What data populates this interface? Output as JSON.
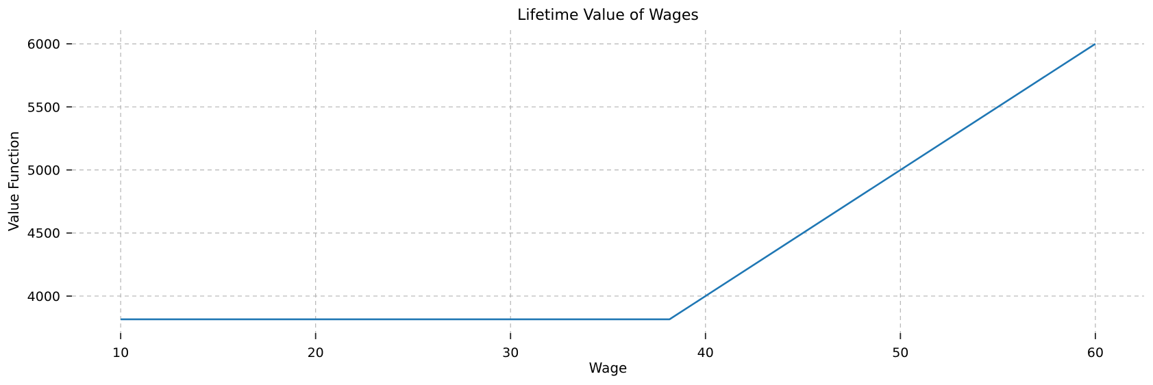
{
  "chart_data": {
    "type": "line",
    "title": "Lifetime Value of Wages",
    "xlabel": "Wage",
    "ylabel": "Value Function",
    "xlim": [
      7.5,
      62.5
    ],
    "ylim": [
      3707,
      6109
    ],
    "xticks": [
      10,
      20,
      30,
      40,
      50,
      60
    ],
    "yticks": [
      4000,
      4500,
      5000,
      5500,
      6000
    ],
    "grid": "dashed-both-axes",
    "legend": "none",
    "spines": "none",
    "series": [
      {
        "name": "value-function",
        "color": "#1f77b4",
        "points": [
          [
            10,
            3816
          ],
          [
            38.16,
            3816
          ],
          [
            40,
            4000
          ],
          [
            50,
            5000
          ],
          [
            60,
            6000
          ]
        ]
      }
    ],
    "colors": {
      "line": "#1f77b4",
      "grid": "#b4b4b4",
      "tick": "#262626",
      "text": "#000000",
      "background": "#ffffff"
    }
  }
}
